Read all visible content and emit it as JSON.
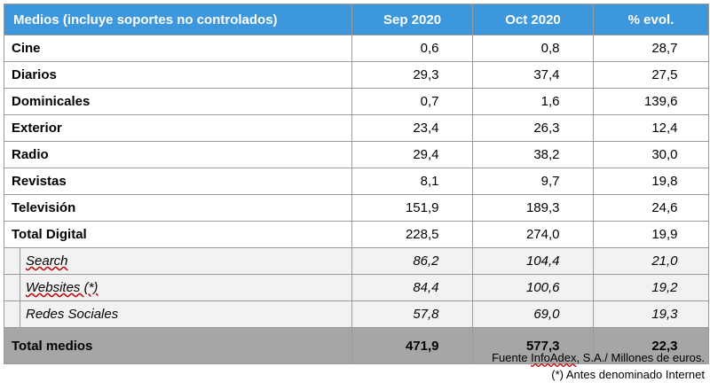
{
  "table": {
    "headers": [
      "Medios (incluye soportes no controlados)",
      "Sep 2020",
      "Oct 2020",
      "% evol."
    ],
    "rows": [
      {
        "label": "Cine",
        "sep": "0,6",
        "oct": "0,8",
        "evol": "28,7"
      },
      {
        "label": "Diarios",
        "sep": "29,3",
        "oct": "37,4",
        "evol": "27,5"
      },
      {
        "label": "Dominicales",
        "sep": "0,7",
        "oct": "1,6",
        "evol": "139,6"
      },
      {
        "label": "Exterior",
        "sep": "23,4",
        "oct": "26,3",
        "evol": "12,4"
      },
      {
        "label": "Radio",
        "sep": "29,4",
        "oct": "38,2",
        "evol": "30,0"
      },
      {
        "label": "Revistas",
        "sep": "8,1",
        "oct": "9,7",
        "evol": "19,8"
      },
      {
        "label": "Televisión",
        "sep": "151,9",
        "oct": "189,3",
        "evol": "24,6"
      },
      {
        "label": "Total Digital",
        "sep": "228,5",
        "oct": "274,0",
        "evol": "19,9"
      }
    ],
    "subrows": [
      {
        "label": "Search",
        "sep": "86,2",
        "oct": "104,4",
        "evol": "21,0"
      },
      {
        "label": "Websites (*)",
        "sep": "84,4",
        "oct": "100,6",
        "evol": "19,2"
      },
      {
        "label": "Redes Sociales",
        "sep": "57,8",
        "oct": "69,0",
        "evol": "19,3"
      }
    ],
    "total": {
      "label": "Total medios",
      "sep": "471,9",
      "oct": "577,3",
      "evol": "22,3"
    }
  },
  "notes": {
    "source": "Fuente InfoAdex, S.A./ Millones de euros.",
    "footnote": "(*) Antes denominado Internet"
  },
  "colors": {
    "header_bg": "#3d97dc",
    "sub_bg": "#f2f2f2",
    "total_bg": "#a6a6a6"
  }
}
